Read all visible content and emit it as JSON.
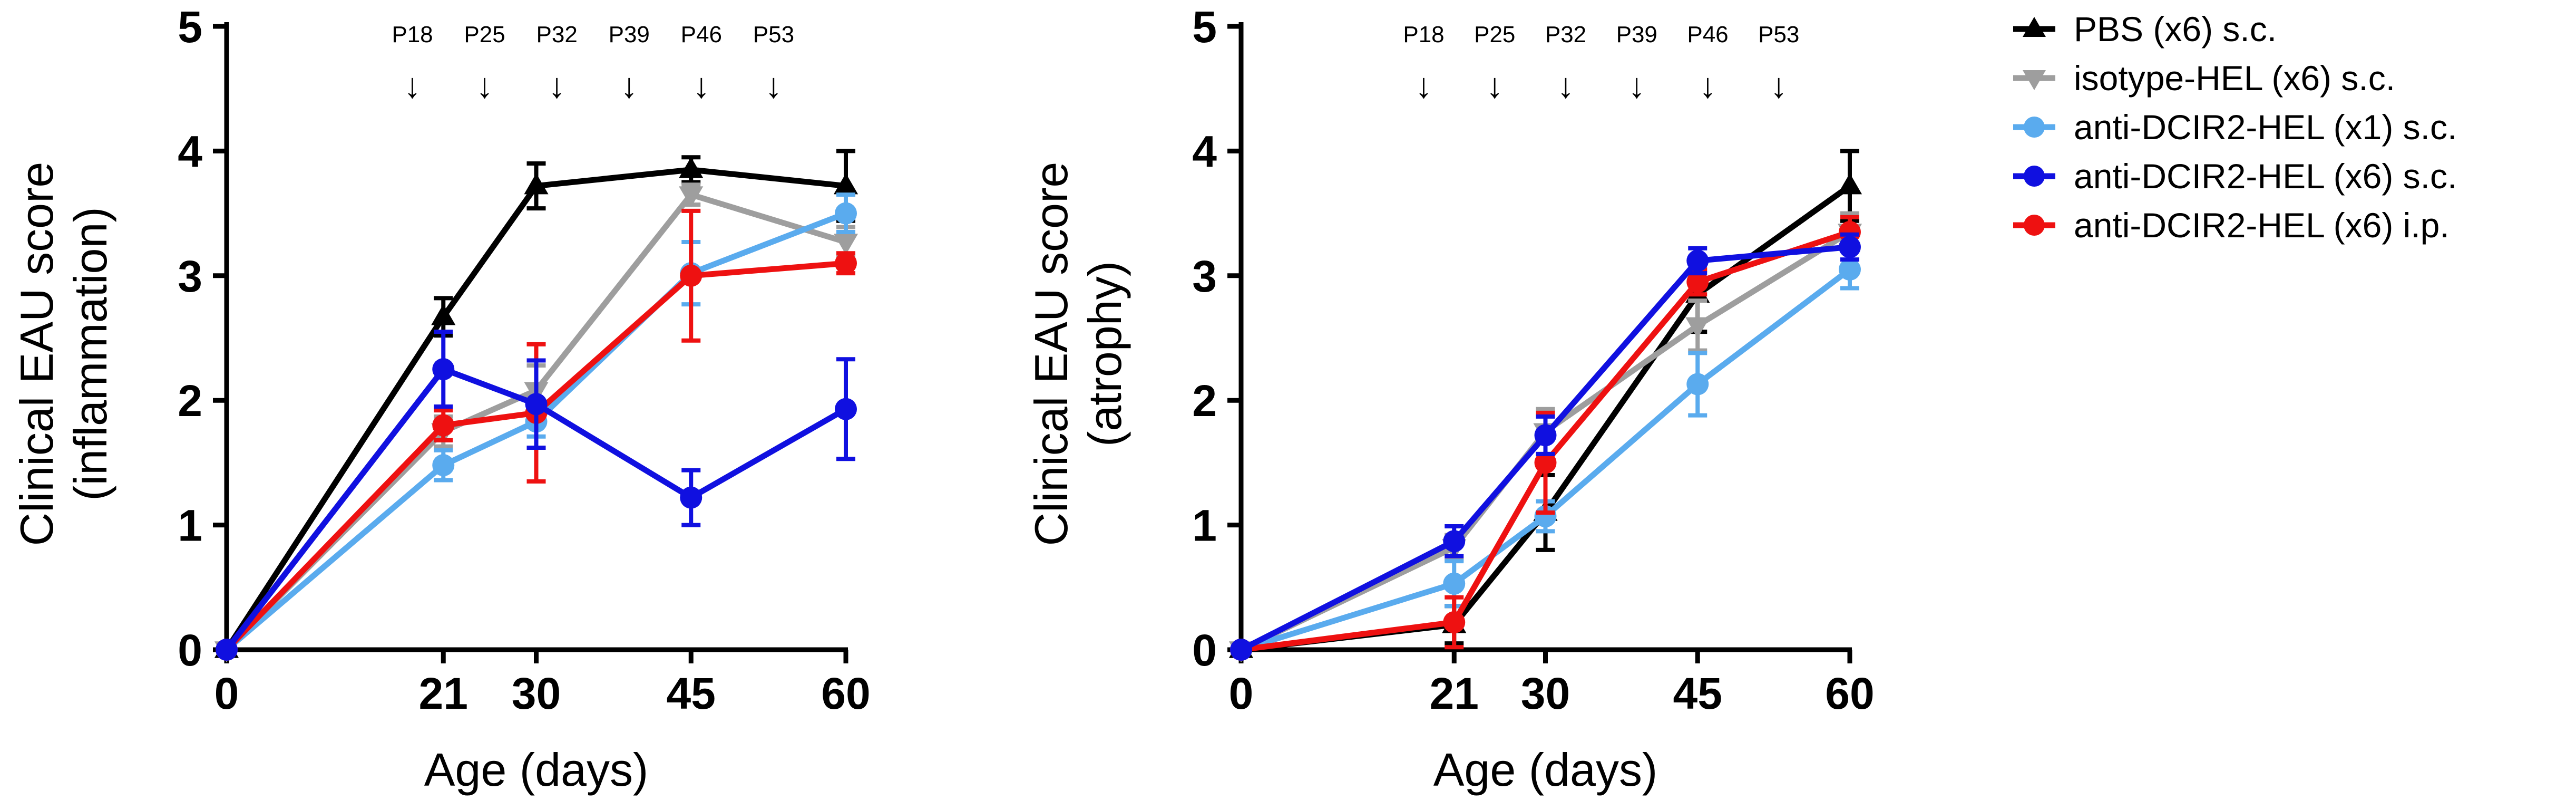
{
  "chart_data": [
    {
      "type": "line",
      "title": "",
      "ylabel": "Clinical EAU score",
      "ylabel_sub": "(inflammation)",
      "xlabel": "Age (days)",
      "x": [
        0,
        21,
        30,
        45,
        60
      ],
      "x_ticks": [
        "0",
        "21",
        "30",
        "45",
        "60"
      ],
      "xlim": [
        0,
        60
      ],
      "ylim": [
        0,
        5
      ],
      "y_ticks": [
        "0",
        "1",
        "2",
        "3",
        "4",
        "5"
      ],
      "injections": [
        {
          "label": "P18",
          "day": 18
        },
        {
          "label": "P25",
          "day": 25
        },
        {
          "label": "P32",
          "day": 32
        },
        {
          "label": "P39",
          "day": 39
        },
        {
          "label": "P46",
          "day": 46
        },
        {
          "label": "P53",
          "day": 53
        }
      ],
      "series": [
        {
          "name": "PBS (x6) s.c.",
          "color": "#000000",
          "marker": "triangle-up",
          "values": [
            0,
            2.67,
            3.72,
            3.85,
            3.72
          ],
          "errors": [
            0,
            0.15,
            0.18,
            0.1,
            0.28
          ]
        },
        {
          "name": "isotype-HEL (x6) s.c.",
          "color": "#9e9e9e",
          "marker": "triangle-down",
          "values": [
            0,
            1.75,
            2.08,
            3.65,
            3.27
          ],
          "errors": [
            0,
            0.12,
            0.2,
            0.08,
            0.12
          ]
        },
        {
          "name": "anti-DCIR2-HEL (x1) s.c.",
          "color": "#5aabee",
          "marker": "circle",
          "values": [
            0,
            1.48,
            1.83,
            3.02,
            3.5
          ],
          "errors": [
            0,
            0.12,
            0.12,
            0.25,
            0.15
          ]
        },
        {
          "name": "anti-DCIR2-HEL (x6) s.c.",
          "color": "#1010e0",
          "marker": "circle",
          "values": [
            0,
            2.25,
            1.97,
            1.22,
            1.93
          ],
          "errors": [
            0,
            0.3,
            0.35,
            0.22,
            0.4
          ]
        },
        {
          "name": "anti-DCIR2-HEL (x6) i.p.",
          "color": "#ee1111",
          "marker": "circle",
          "values": [
            0,
            1.8,
            1.9,
            3.0,
            3.1
          ],
          "errors": [
            0,
            0.12,
            0.55,
            0.52,
            0.08
          ]
        }
      ]
    },
    {
      "type": "line",
      "title": "",
      "ylabel": "Clinical EAU score",
      "ylabel_sub": "(atrophy)",
      "xlabel": "Age (days)",
      "x": [
        0,
        21,
        30,
        45,
        60
      ],
      "x_ticks": [
        "0",
        "21",
        "30",
        "45",
        "60"
      ],
      "xlim": [
        0,
        60
      ],
      "ylim": [
        0,
        5
      ],
      "y_ticks": [
        "0",
        "1",
        "2",
        "3",
        "4",
        "5"
      ],
      "injections": [
        {
          "label": "P18",
          "day": 18
        },
        {
          "label": "P25",
          "day": 25
        },
        {
          "label": "P32",
          "day": 32
        },
        {
          "label": "P39",
          "day": 39
        },
        {
          "label": "P46",
          "day": 46
        },
        {
          "label": "P53",
          "day": 53
        }
      ],
      "series": [
        {
          "name": "PBS (x6) s.c.",
          "color": "#000000",
          "marker": "triangle-up",
          "values": [
            0,
            0.2,
            1.1,
            2.85,
            3.72
          ],
          "errors": [
            0,
            0.15,
            0.3,
            0.3,
            0.28
          ]
        },
        {
          "name": "isotype-HEL (x6) s.c.",
          "color": "#9e9e9e",
          "marker": "triangle-down",
          "values": [
            0,
            0.82,
            1.75,
            2.6,
            3.35
          ],
          "errors": [
            0,
            0.1,
            0.18,
            0.2,
            0.15
          ]
        },
        {
          "name": "anti-DCIR2-HEL (x1) s.c.",
          "color": "#5aabee",
          "marker": "circle",
          "values": [
            0,
            0.53,
            1.07,
            2.13,
            3.05
          ],
          "errors": [
            0,
            0.18,
            0.12,
            0.25,
            0.15
          ]
        },
        {
          "name": "anti-DCIR2-HEL (x6) s.c.",
          "color": "#1010e0",
          "marker": "circle",
          "values": [
            0,
            0.87,
            1.72,
            3.12,
            3.23
          ],
          "errors": [
            0,
            0.12,
            0.15,
            0.1,
            0.1
          ]
        },
        {
          "name": "anti-DCIR2-HEL (x6) i.p.",
          "color": "#ee1111",
          "marker": "circle",
          "values": [
            0,
            0.22,
            1.5,
            2.95,
            3.35
          ],
          "errors": [
            0,
            0.2,
            0.4,
            0.1,
            0.12
          ]
        }
      ]
    }
  ],
  "legend": {
    "position": "top-right",
    "entries": [
      {
        "label": "PBS (x6) s.c.",
        "color": "#000000",
        "marker": "triangle-up"
      },
      {
        "label": "isotype-HEL (x6) s.c.",
        "color": "#9e9e9e",
        "marker": "triangle-down"
      },
      {
        "label": "anti-DCIR2-HEL (x1) s.c.",
        "color": "#5aabee",
        "marker": "circle"
      },
      {
        "label": "anti-DCIR2-HEL (x6) s.c.",
        "color": "#1010e0",
        "marker": "circle"
      },
      {
        "label": "anti-DCIR2-HEL (x6) i.p.",
        "color": "#ee1111",
        "marker": "circle"
      }
    ]
  }
}
